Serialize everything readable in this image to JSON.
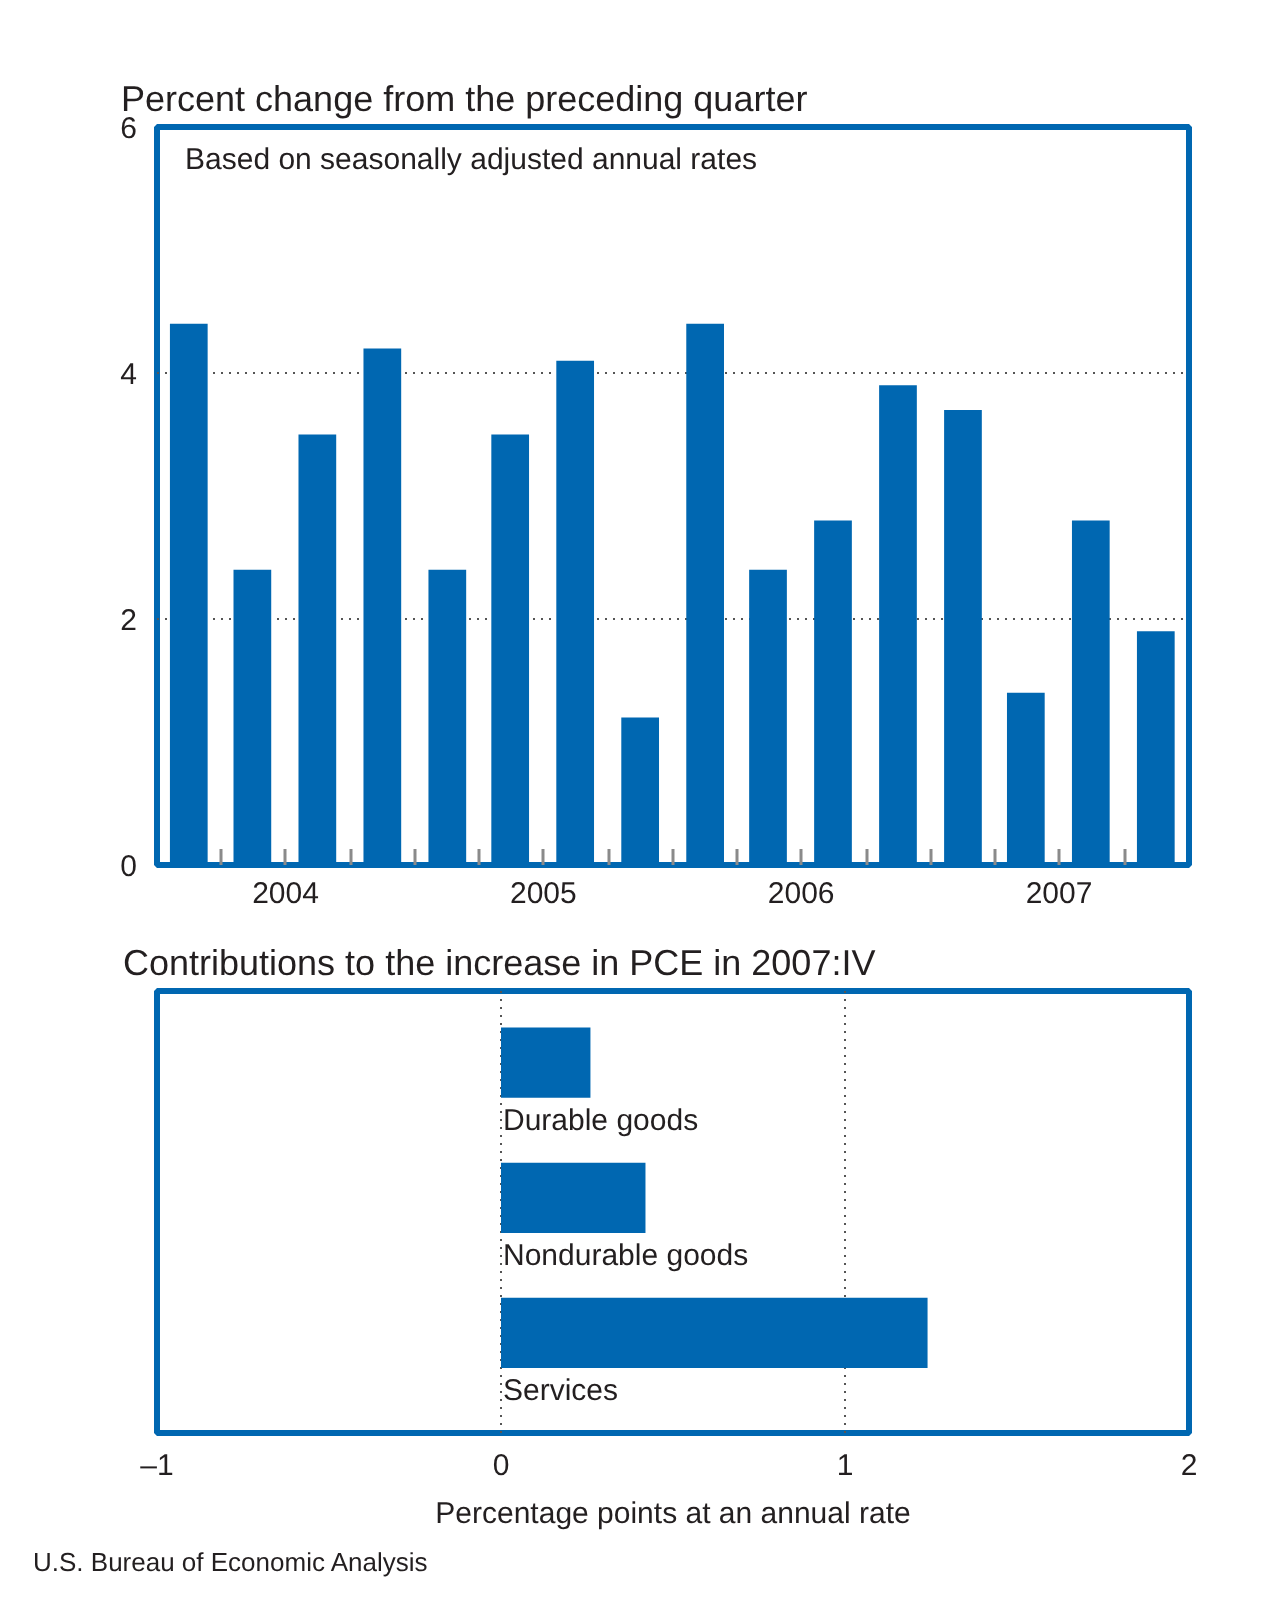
{
  "chart_data": [
    {
      "type": "bar",
      "title": "Percent change from the preceding quarter",
      "annotations": [
        "Based on seasonally adjusted annual rates"
      ],
      "x": [
        "2004-02-15",
        "2004-05-15",
        "2004-08-15",
        "2004-11-15",
        "2005-02-15",
        "2005-05-15",
        "2005-08-15",
        "2005-11-15",
        "2006-02-15",
        "2006-05-15",
        "2006-08-15",
        "2006-11-15",
        "2007-02-15",
        "2007-05-15",
        "2007-08-15",
        "2007-11-15"
      ],
      "values": [
        4.4,
        2.4,
        3.5,
        4.2,
        2.4,
        3.5,
        4.1,
        1.2,
        4.4,
        2.4,
        2.8,
        3.9,
        3.7,
        1.4,
        2.8,
        1.9
      ],
      "color": "#0067b1",
      "xlim": [
        "2004-01-01",
        "2008-01-01"
      ],
      "xticks": [
        {
          "value": "2004-04-01",
          "label": null
        },
        {
          "value": "2004-07-01",
          "label": "2004"
        },
        {
          "value": "2004-10-01",
          "label": null
        },
        {
          "value": "2005-01-01",
          "label": null
        },
        {
          "value": "2005-04-01",
          "label": null
        },
        {
          "value": "2005-07-01",
          "label": "2005"
        },
        {
          "value": "2005-10-01",
          "label": null
        },
        {
          "value": "2006-01-01",
          "label": null
        },
        {
          "value": "2006-04-01",
          "label": null
        },
        {
          "value": "2006-07-01",
          "label": "2006"
        },
        {
          "value": "2006-10-01",
          "label": null
        },
        {
          "value": "2007-01-01",
          "label": null
        },
        {
          "value": "2007-04-01",
          "label": null
        },
        {
          "value": "2007-07-01",
          "label": "2007"
        },
        {
          "value": "2007-10-01",
          "label": null
        }
      ],
      "ylim": [
        0,
        6
      ],
      "yticks": [
        0,
        2,
        4,
        6
      ],
      "grid": "y"
    },
    {
      "type": "bar",
      "orientation": "horizontal",
      "title": "Contributions to the increase in PCE in 2007:IV",
      "categories": [
        "Durable goods",
        "Nondurable goods",
        "Services"
      ],
      "values": [
        0.26,
        0.42,
        1.24
      ],
      "color": "#0067b1",
      "xlabel": "Percentage points at an annual rate",
      "xlim": [
        -1,
        2
      ],
      "xticks": [
        {
          "value": -1,
          "label": "–1"
        },
        0,
        1,
        2
      ],
      "grid": "x",
      "tick_labels": "x",
      "annotations": [
        "U.S. Bureau of Economic Analysis"
      ]
    }
  ]
}
